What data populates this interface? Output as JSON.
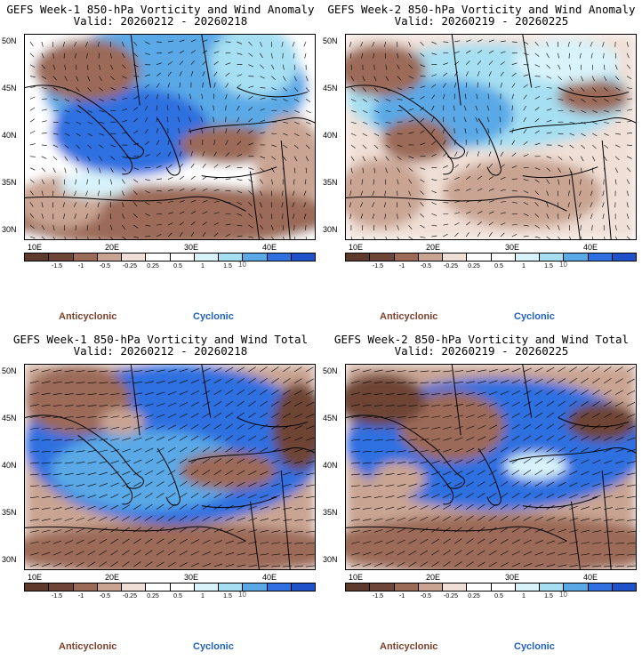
{
  "colors": {
    "anticyclonic_strong": "#6e4536",
    "anticyclonic_mid": "#9b6b58",
    "anticyclonic_weak": "#c9a493",
    "anticyclonic_faint": "#f0dfd6",
    "cyclonic_faint": "#d8f3fa",
    "cyclonic_weak": "#a6dff2",
    "cyclonic_mid": "#5aa9e6",
    "cyclonic_strong": "#2f6fe0",
    "legend_anticyclonic": "#7b3f2c",
    "legend_cyclonic": "#1f5fbf"
  },
  "panels": [
    {
      "title_line1": "GEFS Week-1 850-hPa Vorticity and Wind Anomaly",
      "title_line2": "Valid: 20260212 - 20260218",
      "lat_labels": [
        "50N",
        "45N",
        "40N",
        "35N",
        "30N"
      ],
      "lon_labels": [
        "10E",
        "20E",
        "30E",
        "40E"
      ],
      "colorbar_labels": [
        "-1.5",
        "-1",
        "-0.5",
        "-0.25",
        "0.25",
        "0.5",
        "1",
        "1.5"
      ],
      "colorbar_multiplier": "10",
      "legend_anticyclonic": "Anticyclonic",
      "legend_cyclonic": "Cyclonic"
    },
    {
      "title_line1": "GEFS Week-2 850-hPa Vorticity and Wind Anomaly",
      "title_line2": "Valid: 20260219 - 20260225",
      "lat_labels": [
        "50N",
        "45N",
        "40N",
        "35N",
        "30N"
      ],
      "lon_labels": [
        "10E",
        "20E",
        "30E",
        "40E"
      ],
      "colorbar_labels": [
        "-1.5",
        "-1",
        "-0.5",
        "-0.25",
        "0.25",
        "0.5",
        "1",
        "1.5"
      ],
      "colorbar_multiplier": "10",
      "legend_anticyclonic": "Anticyclonic",
      "legend_cyclonic": "Cyclonic"
    },
    {
      "title_line1": "GEFS Week-1 850-hPa Vorticity and Wind Total",
      "title_line2": "Valid: 20260212 - 20260218",
      "lat_labels": [
        "50N",
        "45N",
        "40N",
        "35N",
        "30N"
      ],
      "lon_labels": [
        "10E",
        "20E",
        "30E",
        "40E"
      ],
      "colorbar_labels": [
        "-1.5",
        "-1",
        "-0.5",
        "-0.25",
        "0.25",
        "0.5",
        "1",
        "1.5"
      ],
      "colorbar_multiplier": "10",
      "legend_anticyclonic": "Anticyclonic",
      "legend_cyclonic": "Cyclonic"
    },
    {
      "title_line1": "GEFS Week-2 850-hPa Vorticity and Wind Total",
      "title_line2": "Valid: 20260219 - 20260225",
      "lat_labels": [
        "50N",
        "45N",
        "40N",
        "35N",
        "30N"
      ],
      "lon_labels": [
        "10E",
        "20E",
        "30E",
        "40E"
      ],
      "colorbar_labels": [
        "-1.5",
        "-1",
        "-0.5",
        "-0.25",
        "0.25",
        "0.5",
        "1",
        "1.5"
      ],
      "colorbar_multiplier": "10",
      "legend_anticyclonic": "Anticyclonic",
      "legend_cyclonic": "Cyclonic"
    }
  ]
}
